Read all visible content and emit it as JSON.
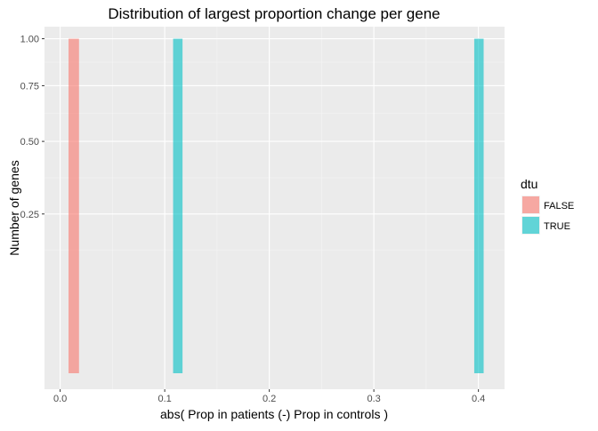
{
  "chart_data": {
    "type": "bar",
    "title": "Distribution of largest proportion change per gene",
    "xlabel": "abs( Prop in patients (-) Prop in controls )",
    "ylabel": "Number of genes",
    "y_scale": "sqrt",
    "xlim": [
      -0.015,
      0.425
    ],
    "ylim": [
      0,
      1.07
    ],
    "x_ticks": [
      {
        "value": 0.0,
        "label": "0.0"
      },
      {
        "value": 0.1,
        "label": "0.1"
      },
      {
        "value": 0.2,
        "label": "0.2"
      },
      {
        "value": 0.3,
        "label": "0.3"
      },
      {
        "value": 0.4,
        "label": "0.4"
      }
    ],
    "y_ticks": [
      {
        "value": 0.25,
        "label": "0.25"
      },
      {
        "value": 0.5,
        "label": "0.50"
      },
      {
        "value": 0.75,
        "label": "0.75"
      },
      {
        "value": 1.0,
        "label": "1.00"
      }
    ],
    "grid": true,
    "legend": {
      "title": "dtu",
      "position": "right",
      "entries": [
        {
          "label": "FALSE",
          "color": "#F8766D"
        },
        {
          "label": "TRUE",
          "color": "#00BFC4"
        }
      ]
    },
    "series": [
      {
        "name": "FALSE",
        "color": "#F8766D",
        "bars": [
          {
            "x0": 0.008,
            "x1": 0.018,
            "value": 1
          }
        ]
      },
      {
        "name": "TRUE",
        "color": "#00BFC4",
        "bars": [
          {
            "x0": 0.108,
            "x1": 0.117,
            "value": 1
          },
          {
            "x0": 0.396,
            "x1": 0.405,
            "value": 1
          }
        ]
      }
    ]
  }
}
